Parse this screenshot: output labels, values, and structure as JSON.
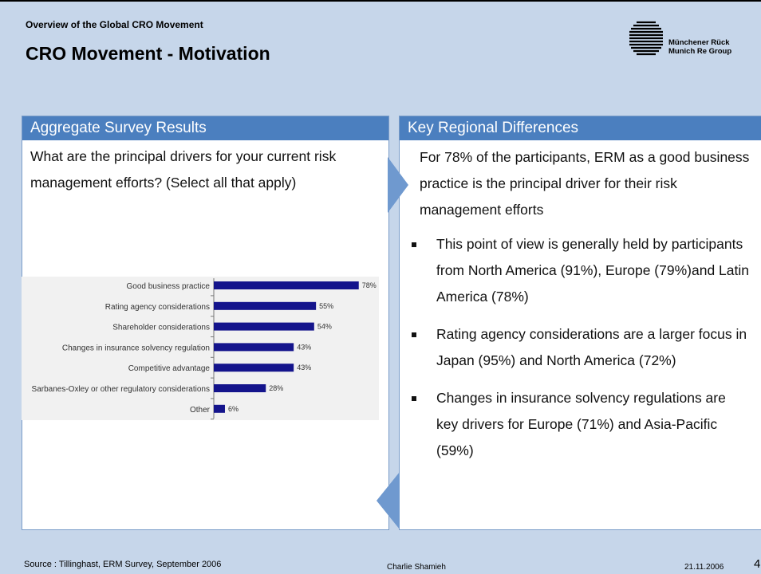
{
  "header": {
    "supertitle": "Overview of the Global CRO Movement",
    "title": "CRO Movement - Motivation"
  },
  "logo": {
    "line1": "Münchener Rück",
    "line2": "Munich Re Group"
  },
  "left_panel": {
    "heading": "Aggregate Survey Results",
    "question": "What are the principal drivers for your current risk management efforts? (Select all that apply)"
  },
  "right_panel": {
    "heading": "Key Regional Differences",
    "intro": "For 78% of the participants, ERM as a good business practice is the principal driver for their risk management efforts",
    "bullets": [
      "This point of view is generally held by participants from North America (91%), Europe (79%)and Latin America (78%)",
      "Rating agency considerations are a larger focus in Japan (95%) and North America (72%)",
      "Changes in insurance solvency regulations are key drivers for Europe (71%) and Asia-Pacific (59%)"
    ]
  },
  "chart_data": {
    "type": "hbar",
    "categories": [
      "Good business practice",
      "Rating agency considerations",
      "Shareholder considerations",
      "Changes in insurance solvency regulation",
      "Competitive advantage",
      "Sarbanes-Oxley or other regulatory considerations",
      "Other"
    ],
    "values": [
      78,
      55,
      54,
      43,
      43,
      28,
      6
    ],
    "value_labels": [
      "78%",
      "55%",
      "54%",
      "43%",
      "43%",
      "28%",
      "6%"
    ],
    "color": "#14148c"
  },
  "footer": {
    "source": "Source : Tillinghast, ERM Survey, September 2006",
    "author": "Charlie Shamieh",
    "date": "21.11.2006",
    "page": "4"
  }
}
